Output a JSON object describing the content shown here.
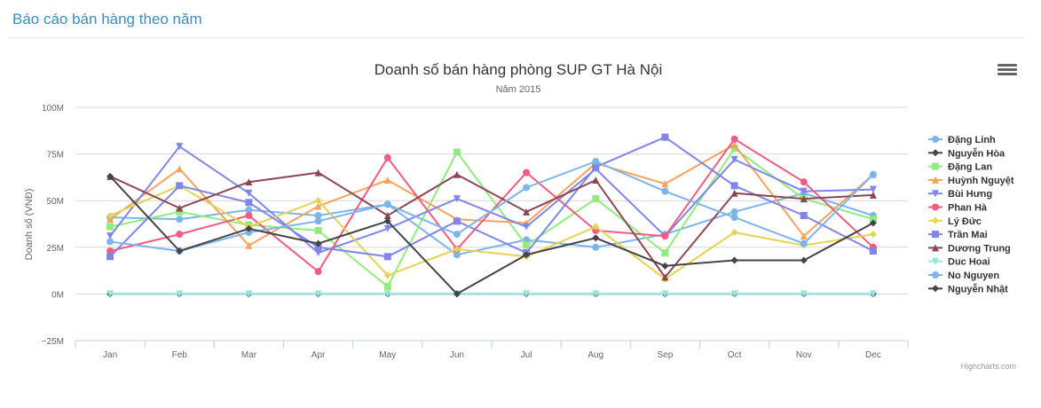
{
  "page": {
    "header": "Báo cáo bán hàng theo năm"
  },
  "credits": "Highcharts.com",
  "menu_icon": "hamburger-menu-icon",
  "chart_data": {
    "type": "line",
    "title": "Doanh số bán hàng phòng SUP GT Hà Nội",
    "subtitle": "Năm 2015",
    "ylabel": "Doanh số (VNĐ)",
    "xlabel": "",
    "categories": [
      "Jan",
      "Feb",
      "Mar",
      "Apr",
      "May",
      "Jun",
      "Jul",
      "Aug",
      "Sep",
      "Oct",
      "Nov",
      "Dec"
    ],
    "ylim": [
      -25,
      100
    ],
    "yticks": [
      -25,
      0,
      25,
      50,
      75,
      100
    ],
    "ytick_labels": [
      "−25M",
      "0M",
      "25M",
      "50M",
      "75M",
      "100M"
    ],
    "grid": true,
    "legend_position": "right",
    "series": [
      {
        "name": "Đặng Linh",
        "color": "#7cb5ec",
        "marker": "circle",
        "values": [
          41,
          40,
          45,
          42,
          48,
          21,
          29,
          25,
          32,
          44,
          54,
          42
        ]
      },
      {
        "name": "Nguyễn Hòa",
        "color": "#434348",
        "marker": "diamond",
        "values": [
          0,
          0,
          0,
          0,
          0,
          0,
          0,
          0,
          0,
          0,
          0,
          0
        ]
      },
      {
        "name": "Đặng Lan",
        "color": "#90ed7d",
        "marker": "square",
        "values": [
          36,
          44,
          37,
          34,
          4,
          76,
          26,
          51,
          22,
          78,
          51,
          40
        ]
      },
      {
        "name": "Huỳnh Nguyệt",
        "color": "#f7a35c",
        "marker": "triangle",
        "values": [
          40,
          67,
          26,
          47,
          61,
          40,
          38,
          70,
          59,
          80,
          31,
          64
        ]
      },
      {
        "name": "Bùi Hưng",
        "color": "#8085e9",
        "marker": "triangle-down",
        "values": [
          31,
          79,
          54,
          22,
          35,
          51,
          36,
          67,
          31,
          72,
          55,
          56
        ]
      },
      {
        "name": "Phan Hà",
        "color": "#f15c80",
        "marker": "circle",
        "values": [
          23,
          32,
          42,
          12,
          73,
          24,
          65,
          34,
          31,
          83,
          60,
          25
        ]
      },
      {
        "name": "Lý Đức",
        "color": "#e4d354",
        "marker": "diamond",
        "values": [
          42,
          58,
          36,
          50,
          10,
          24,
          20,
          36,
          8,
          33,
          26,
          32
        ]
      },
      {
        "name": "Trần Mai",
        "color": "#8085e8",
        "marker": "square",
        "values": [
          20,
          58,
          49,
          25,
          20,
          39,
          22,
          68,
          84,
          58,
          42,
          23
        ]
      },
      {
        "name": "Dương Trung",
        "color": "#8d4653",
        "marker": "triangle",
        "values": [
          63,
          46,
          60,
          65,
          42,
          64,
          44,
          61,
          9,
          54,
          51,
          53
        ]
      },
      {
        "name": "Duc Hoai",
        "color": "#91e8e1",
        "marker": "triangle-down",
        "values": [
          0,
          0,
          0,
          0,
          0,
          0,
          0,
          0,
          0,
          0,
          0,
          0
        ]
      },
      {
        "name": "No Nguyen",
        "color": "#7cb5ec",
        "marker": "circle",
        "values": [
          28,
          23,
          33,
          39,
          48,
          32,
          57,
          71,
          55,
          41,
          27,
          64
        ]
      },
      {
        "name": "Nguyễn Nhật",
        "color": "#434348",
        "marker": "diamond",
        "values": [
          63,
          23,
          35,
          27,
          39,
          0,
          21,
          30,
          15,
          18,
          18,
          38
        ]
      }
    ]
  }
}
